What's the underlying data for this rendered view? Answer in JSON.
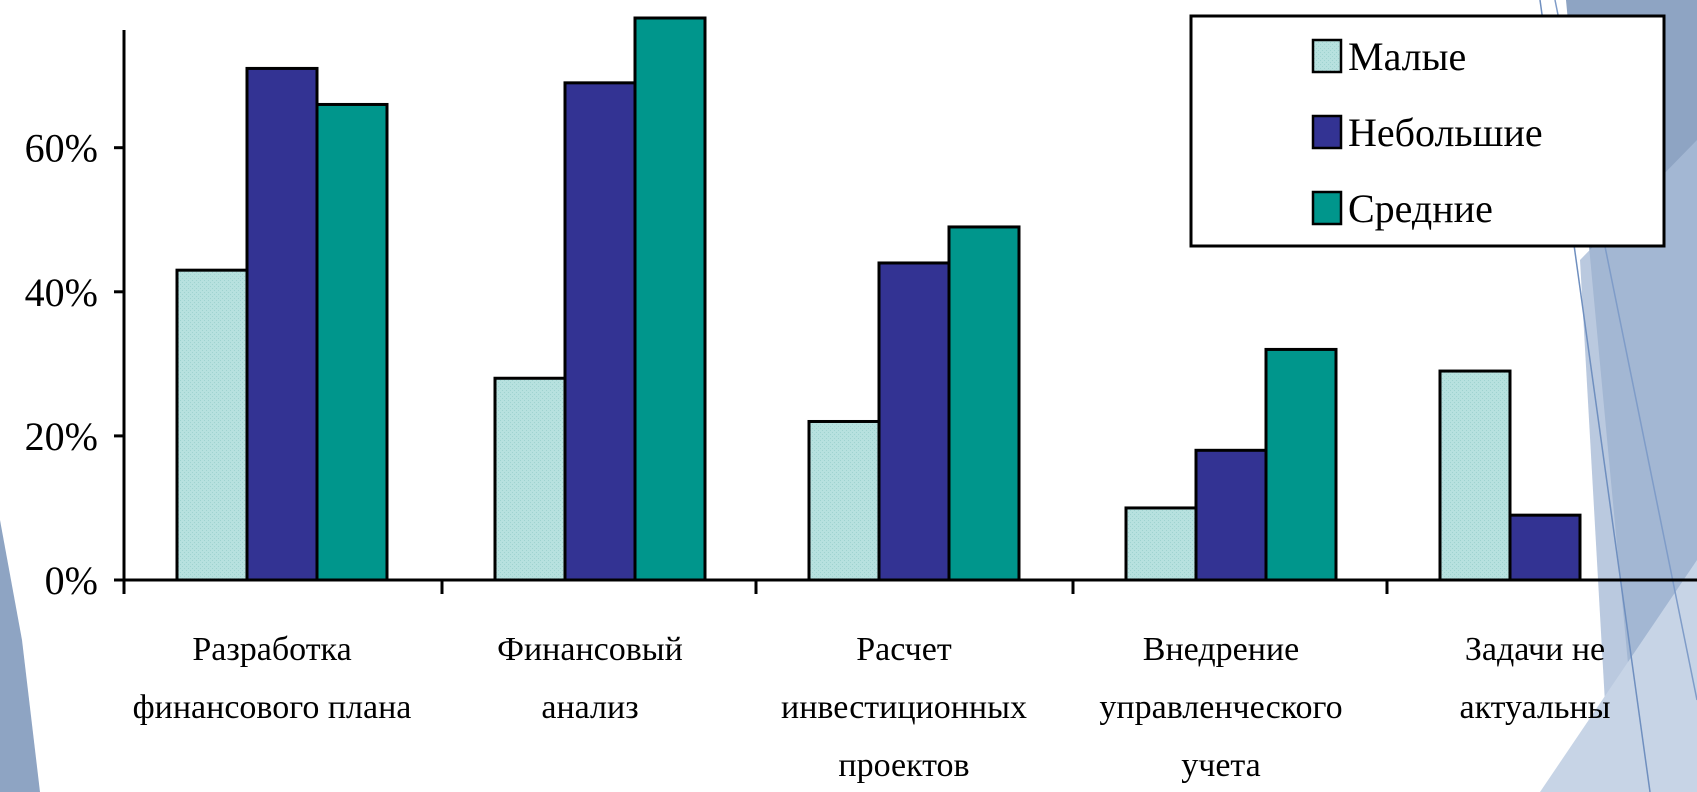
{
  "chart_data": {
    "type": "bar",
    "title": "",
    "xlabel": "",
    "ylabel": "",
    "ylim": [
      0,
      0.78
    ],
    "yticks": [
      0,
      0.2,
      0.4,
      0.6
    ],
    "ytick_labels": [
      "0%",
      "20%",
      "40%",
      "60%"
    ],
    "grid": false,
    "legend_position": "top-right",
    "categories": [
      [
        "Разработка",
        "финансового плана"
      ],
      [
        "Финансовый",
        "анализ"
      ],
      [
        "Расчет",
        "инвестиционных",
        "проектов"
      ],
      [
        "Внедрение",
        "управленческого",
        "учета"
      ],
      [
        "Задачи не",
        "актуальны"
      ]
    ],
    "series": [
      {
        "name": "Малые",
        "color": "#b7e1df",
        "values": [
          0.43,
          0.28,
          0.22,
          0.1,
          0.29
        ]
      },
      {
        "name": "Небольшие",
        "color": "#333393",
        "values": [
          0.71,
          0.69,
          0.44,
          0.18,
          0.09
        ]
      },
      {
        "name": "Средние",
        "color": "#00968c",
        "values": [
          0.66,
          0.78,
          0.49,
          0.32,
          null
        ]
      }
    ]
  }
}
